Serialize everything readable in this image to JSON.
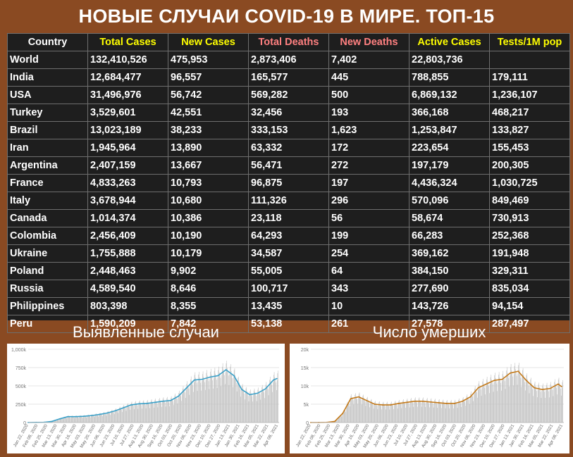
{
  "title": "НОВЫЕ СЛУЧАИ COVID-19 В МИРЕ. ТОП-15",
  "colors": {
    "background": "#8a4a22",
    "table_bg": "#1e1e1e",
    "yellow": "#ffff00",
    "salmon": "#ff8080",
    "white": "#ffffff",
    "cases_line": "#3aa0c8",
    "deaths_line": "#c47a1a",
    "bars": "#bdbdbd"
  },
  "table": {
    "columns": [
      {
        "label": "Country",
        "color": "#ffffff"
      },
      {
        "label": "Total Cases",
        "color": "#ffff00"
      },
      {
        "label": "New Cases",
        "color": "#ffff00"
      },
      {
        "label": "Total Deaths",
        "color": "#ff8080"
      },
      {
        "label": "New Deaths",
        "color": "#ff8080"
      },
      {
        "label": "Active Cases",
        "color": "#ffff00"
      },
      {
        "label": "Tests/1M pop",
        "color": "#ffff00"
      }
    ],
    "rows": [
      [
        "World",
        "132,410,526",
        "475,953",
        "2,873,406",
        "7,402",
        "22,803,736",
        ""
      ],
      [
        "India",
        "12,684,477",
        "96,557",
        "165,577",
        "445",
        "788,855",
        "179,111"
      ],
      [
        "USA",
        "31,496,976",
        "56,742",
        "569,282",
        "500",
        "6,869,132",
        "1,236,107"
      ],
      [
        "Turkey",
        "3,529,601",
        "42,551",
        "32,456",
        "193",
        "366,168",
        "468,217"
      ],
      [
        "Brazil",
        "13,023,189",
        "38,233",
        "333,153",
        "1,623",
        "1,253,847",
        "133,827"
      ],
      [
        "Iran",
        "1,945,964",
        "13,890",
        "63,332",
        "172",
        "223,654",
        "155,453"
      ],
      [
        "Argentina",
        "2,407,159",
        "13,667",
        "56,471",
        "272",
        "197,179",
        "200,305"
      ],
      [
        "France",
        "4,833,263",
        "10,793",
        "96,875",
        "197",
        "4,436,324",
        "1,030,725"
      ],
      [
        "Italy",
        "3,678,944",
        "10,680",
        "111,326",
        "296",
        "570,096",
        "849,469"
      ],
      [
        "Canada",
        "1,014,374",
        "10,386",
        "23,118",
        "56",
        "58,674",
        "730,913"
      ],
      [
        "Colombia",
        "2,456,409",
        "10,190",
        "64,293",
        "199",
        "66,283",
        "252,368"
      ],
      [
        "Ukraine",
        "1,755,888",
        "10,179",
        "34,587",
        "254",
        "369,162",
        "191,948"
      ],
      [
        "Poland",
        "2,448,463",
        "9,902",
        "55,005",
        "64",
        "384,150",
        "329,311"
      ],
      [
        "Russia",
        "4,589,540",
        "8,646",
        "100,717",
        "343",
        "277,690",
        "835,034"
      ],
      [
        "Philippines",
        "803,398",
        "8,355",
        "13,435",
        "10",
        "143,726",
        "94,154"
      ],
      [
        "Peru",
        "1,590,209",
        "7,842",
        "53,138",
        "261",
        "27,578",
        "287,497"
      ]
    ]
  },
  "panels": {
    "cases_title": "Выявленные случаи",
    "deaths_title": "Число умерших"
  },
  "chart_data": [
    {
      "type": "bar",
      "title": "Выявленные случаи",
      "ylim": [
        0,
        1000000
      ],
      "ytick_labels": [
        "0",
        "250k",
        "500k",
        "750k",
        "1,000k"
      ],
      "yticks": [
        0,
        250000,
        500000,
        750000,
        1000000
      ],
      "xtick_labels": [
        "Jan 22, 2020",
        "Feb 08, 2020",
        "Feb 25, 2020",
        "Mar 13, 2020",
        "Mar 30, 2020",
        "Apr 16, 2020",
        "May 03, 2020",
        "May 20, 2020",
        "Jun 06, 2020",
        "Jun 23, 2020",
        "Jul 10, 2020",
        "Jul 27, 2020",
        "Aug 13, 2020",
        "Aug 30, 2020",
        "Sep 16, 2020",
        "Oct 03, 2020",
        "Oct 20, 2020",
        "Nov 06, 2020",
        "Nov 23, 2020",
        "Dec 10, 2020",
        "Dec 27, 2020",
        "Jan 13, 2021",
        "Jan 30, 2021",
        "Feb 16, 2021",
        "Mar 05, 2021",
        "Mar 22, 2021",
        "Apr 08, 2021"
      ],
      "weekly_x": [
        "Jan 22, 2020",
        "Feb 05, 2020",
        "Feb 19, 2020",
        "Mar 04, 2020",
        "Mar 18, 2020",
        "Apr 01, 2020",
        "Apr 15, 2020",
        "Apr 29, 2020",
        "May 13, 2020",
        "May 27, 2020",
        "Jun 10, 2020",
        "Jun 24, 2020",
        "Jul 08, 2020",
        "Jul 22, 2020",
        "Aug 05, 2020",
        "Aug 19, 2020",
        "Sep 02, 2020",
        "Sep 16, 2020",
        "Sep 30, 2020",
        "Oct 14, 2020",
        "Oct 28, 2020",
        "Nov 11, 2020",
        "Nov 25, 2020",
        "Dec 09, 2020",
        "Dec 23, 2020",
        "Jan 06, 2021",
        "Jan 20, 2021",
        "Feb 03, 2021",
        "Feb 17, 2021",
        "Mar 03, 2021",
        "Mar 17, 2021",
        "Mar 31, 2021",
        "Apr 06, 2021"
      ],
      "avg_values": [
        0,
        2000,
        3000,
        15000,
        50000,
        80000,
        80000,
        85000,
        95000,
        110000,
        130000,
        160000,
        200000,
        240000,
        255000,
        260000,
        275000,
        290000,
        300000,
        360000,
        470000,
        580000,
        590000,
        620000,
        640000,
        720000,
        640000,
        450000,
        380000,
        400000,
        460000,
        580000,
        600000
      ]
    },
    {
      "type": "bar",
      "title": "Число умерших",
      "ylim": [
        0,
        20000
      ],
      "ytick_labels": [
        "0",
        "5k",
        "10k",
        "15k",
        "20k"
      ],
      "yticks": [
        0,
        5000,
        10000,
        15000,
        20000
      ],
      "xtick_labels": [
        "Jan 22, 2020",
        "Feb 08, 2020",
        "Feb 25, 2020",
        "Mar 13, 2020",
        "Mar 30, 2020",
        "Apr 16, 2020",
        "May 03, 2020",
        "May 20, 2020",
        "Jun 06, 2020",
        "Jun 23, 2020",
        "Jul 10, 2020",
        "Jul 27, 2020",
        "Aug 13, 2020",
        "Aug 30, 2020",
        "Sep 16, 2020",
        "Oct 03, 2020",
        "Oct 20, 2020",
        "Nov 06, 2020",
        "Nov 23, 2020",
        "Dec 10, 2020",
        "Dec 27, 2020",
        "Jan 13, 2021",
        "Jan 30, 2021",
        "Feb 16, 2021",
        "Mar 05, 2021",
        "Mar 22, 2021",
        "Apr 08, 2021"
      ],
      "weekly_x": [
        "Jan 22, 2020",
        "Feb 05, 2020",
        "Feb 19, 2020",
        "Mar 04, 2020",
        "Mar 18, 2020",
        "Apr 01, 2020",
        "Apr 15, 2020",
        "Apr 29, 2020",
        "May 13, 2020",
        "May 27, 2020",
        "Jun 10, 2020",
        "Jun 24, 2020",
        "Jul 08, 2020",
        "Jul 22, 2020",
        "Aug 05, 2020",
        "Aug 19, 2020",
        "Sep 02, 2020",
        "Sep 16, 2020",
        "Sep 30, 2020",
        "Oct 14, 2020",
        "Oct 28, 2020",
        "Nov 11, 2020",
        "Nov 25, 2020",
        "Dec 09, 2020",
        "Dec 23, 2020",
        "Jan 06, 2021",
        "Jan 20, 2021",
        "Feb 03, 2021",
        "Feb 17, 2021",
        "Mar 03, 2021",
        "Mar 17, 2021",
        "Mar 31, 2021",
        "Apr 06, 2021"
      ],
      "avg_values": [
        0,
        0,
        50,
        300,
        2500,
        6500,
        7000,
        6000,
        5000,
        4800,
        4800,
        5200,
        5500,
        5800,
        5800,
        5600,
        5400,
        5200,
        5200,
        5800,
        7000,
        9500,
        10500,
        11500,
        11800,
        13500,
        14000,
        11500,
        9500,
        9000,
        9300,
        10500,
        9800
      ]
    }
  ]
}
